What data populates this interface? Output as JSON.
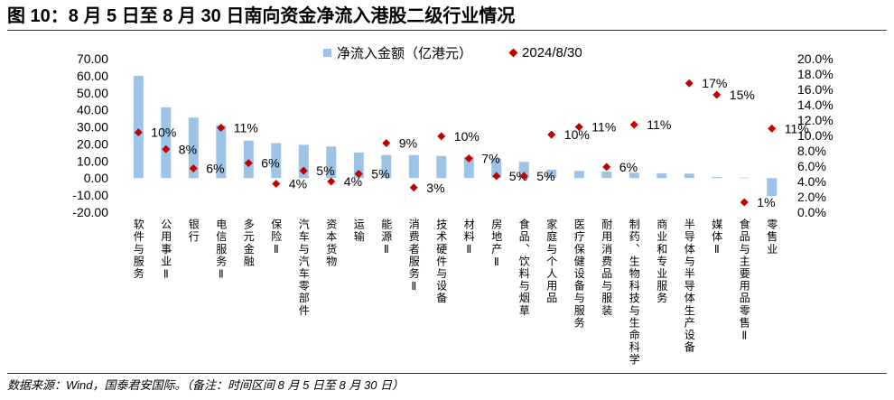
{
  "chart_data": {
    "type": "bar",
    "title": "图 10：8 月 5 日至 8 月 30 日南向资金净流入港股二级行业情况",
    "categories": [
      "软件与服务",
      "公用事业Ⅱ",
      "银行",
      "电信服务Ⅱ",
      "多元金融",
      "保险Ⅱ",
      "汽车与汽车零部件",
      "资本货物",
      "运输",
      "能源Ⅱ",
      "消费者服务Ⅱ",
      "技术硬件与设备",
      "材料Ⅱ",
      "房地产Ⅱ",
      "食品、饮料与烟草",
      "家庭与个人用品",
      "医疗保健设备与服务",
      "耐用消费品与服装",
      "制药、生物科技与生命科学",
      "商业和专业服务",
      "半导体与半导体生产设备",
      "媒体Ⅱ",
      "食品与主要用品零售Ⅱ",
      "零售业"
    ],
    "series": [
      {
        "name": "净流入金额（亿港元）",
        "type": "bar",
        "axis": "left",
        "color": "#9DC3E6",
        "values": [
          60,
          41.5,
          35.5,
          31,
          22,
          20.5,
          19.5,
          18.5,
          15,
          13.5,
          13.5,
          13,
          12.5,
          11.5,
          9.5,
          5,
          4.2,
          3.8,
          3.2,
          2.8,
          2.6,
          0.6,
          0.2,
          -10.5
        ]
      },
      {
        "name": "2024/8/30",
        "type": "scatter",
        "marker": "diamond",
        "axis": "right",
        "color": "#C00000",
        "values": [
          10.4,
          8.2,
          5.7,
          11.0,
          6.4,
          3.7,
          5.4,
          4.0,
          5.0,
          9.0,
          3.2,
          9.9,
          7.0,
          4.7,
          4.7,
          10.1,
          11.1,
          5.9,
          11.4,
          null,
          16.8,
          15.3,
          1.3,
          10.9
        ],
        "data_labels": [
          "10%",
          "8%",
          "6%",
          "11%",
          "6%",
          "4%",
          "5%",
          "4%",
          "5%",
          "9%",
          "3%",
          "10%",
          "7%",
          "5%",
          "5%",
          "10%",
          "11%",
          "6%",
          "11%",
          null,
          "17%",
          "15%",
          "1%",
          "11%"
        ]
      }
    ],
    "left_axis": {
      "min": -20,
      "max": 70,
      "step": 10,
      "tick_labels": [
        "70.00",
        "60.00",
        "50.00",
        "40.00",
        "30.00",
        "20.00",
        "10.00",
        "0.00",
        "-10.00",
        "-20.00"
      ]
    },
    "right_axis": {
      "min": 0,
      "max": 20,
      "step": 2,
      "tick_labels": [
        "20.0%",
        "18.0%",
        "16.0%",
        "14.0%",
        "12.0%",
        "10.0%",
        "8.0%",
        "6.0%",
        "4.0%",
        "2.0%",
        "0.0%"
      ]
    },
    "legend": "top",
    "grid": false
  },
  "source_note": "数据来源：Wind，国泰君安国际。（备注：时间区间 8 月 5 日至 8 月 30 日）"
}
